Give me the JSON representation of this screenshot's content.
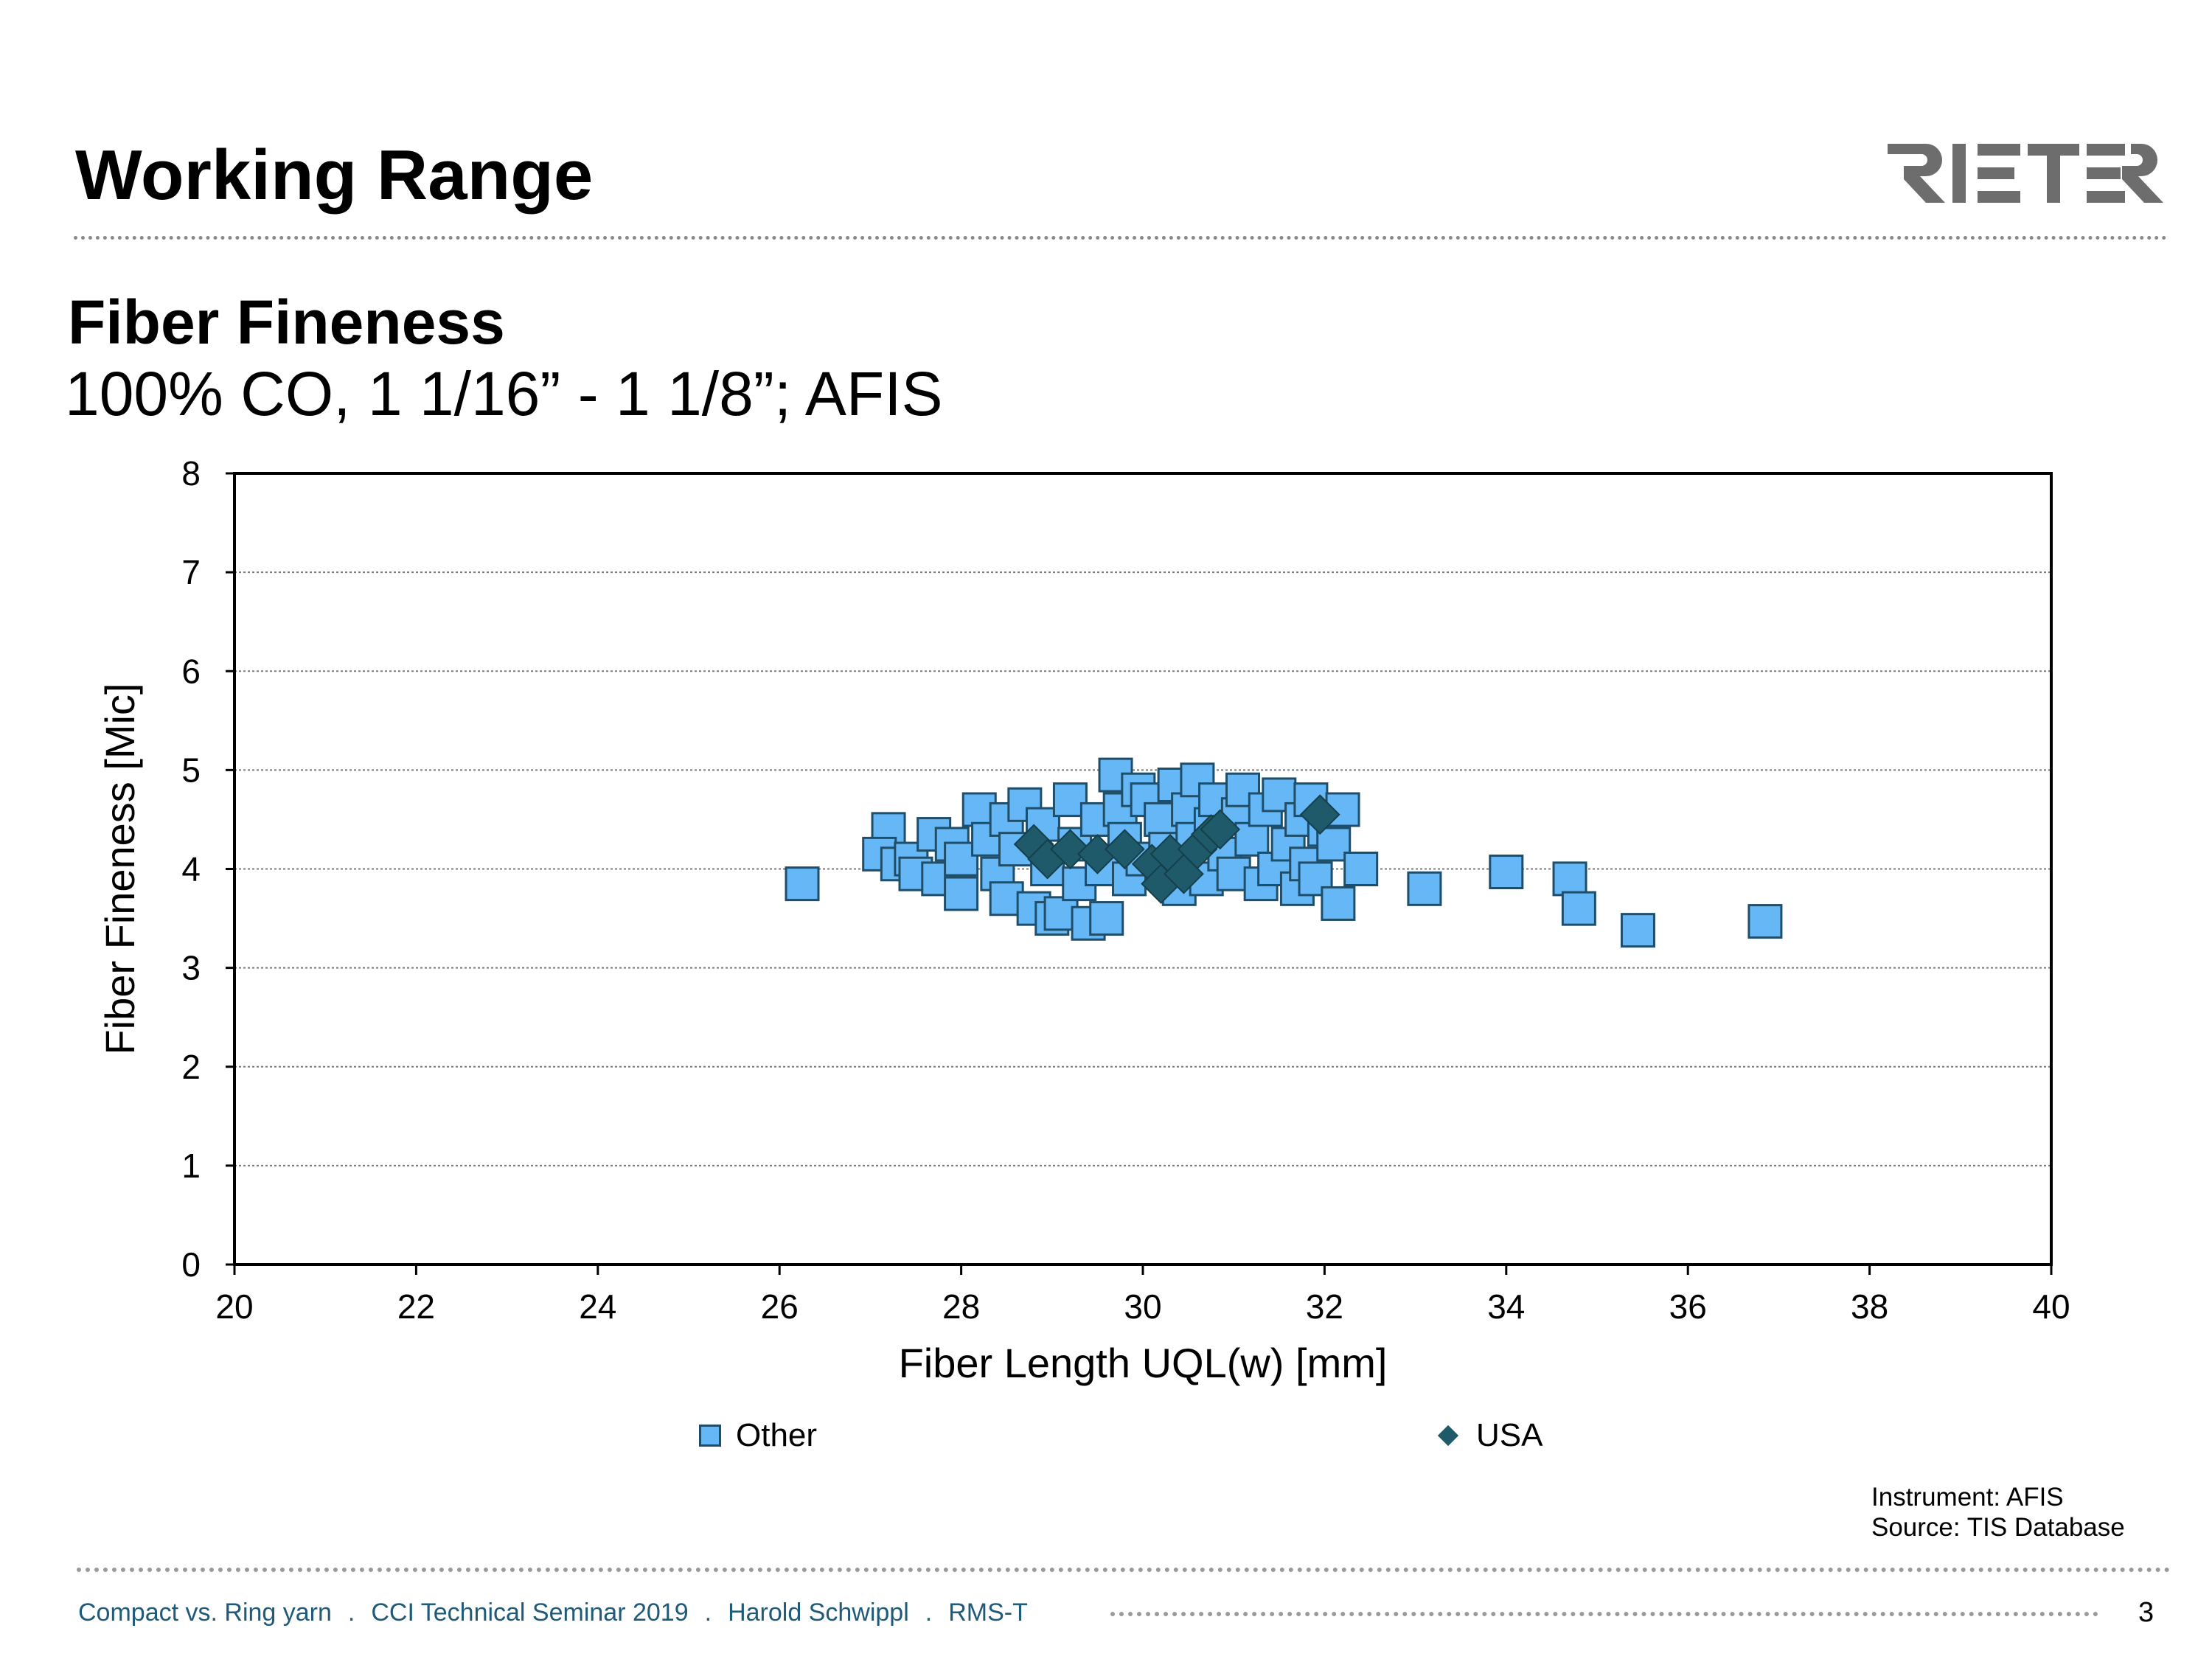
{
  "slide": {
    "title": "Working Range",
    "heading": "Fiber Fineness",
    "subheading": "100% CO, 1 1/16” - 1 1/8”; AFIS",
    "logo_text": "RIETER",
    "source_line1": "Instrument: AFIS",
    "source_line2": "Source: TIS Database",
    "footer": {
      "part1": "Compact vs. Ring yarn",
      "part2": "CCI Technical Seminar 2019",
      "part3": "Harold Schwippl",
      "part4": "RMS-T",
      "separator": ".",
      "page_number": "3"
    }
  },
  "chart_data": {
    "type": "scatter",
    "title": "",
    "xlabel": "Fiber Length UQL(w) [mm]",
    "ylabel": "Fiber Fineness [Mic]",
    "xlim": [
      20,
      40
    ],
    "ylim": [
      0,
      8
    ],
    "x_ticks": [
      20,
      22,
      24,
      26,
      28,
      30,
      32,
      34,
      36,
      38,
      40
    ],
    "y_ticks": [
      0,
      1,
      2,
      3,
      4,
      5,
      6,
      7,
      8
    ],
    "grid": "horizontal dotted",
    "legend_position": "bottom",
    "colors": {
      "Other": "#66b7f5",
      "Other_border": "#1f4e6b",
      "USA": "#1f5a6b"
    },
    "series": [
      {
        "name": "Other",
        "marker": "square",
        "points": [
          [
            26.25,
            3.85
          ],
          [
            27.2,
            4.4
          ],
          [
            27.1,
            4.15
          ],
          [
            27.3,
            4.05
          ],
          [
            27.45,
            4.1
          ],
          [
            27.5,
            3.95
          ],
          [
            27.7,
            4.35
          ],
          [
            27.75,
            3.9
          ],
          [
            27.9,
            4.25
          ],
          [
            28.0,
            4.1
          ],
          [
            28.0,
            3.75
          ],
          [
            28.2,
            4.6
          ],
          [
            28.3,
            4.3
          ],
          [
            28.4,
            3.95
          ],
          [
            28.5,
            4.5
          ],
          [
            28.5,
            3.7
          ],
          [
            28.6,
            4.2
          ],
          [
            28.7,
            4.65
          ],
          [
            28.8,
            3.6
          ],
          [
            28.9,
            4.45
          ],
          [
            28.95,
            4.0
          ],
          [
            29.0,
            3.5
          ],
          [
            29.1,
            3.55
          ],
          [
            29.2,
            4.7
          ],
          [
            29.25,
            4.25
          ],
          [
            29.3,
            3.85
          ],
          [
            29.4,
            3.45
          ],
          [
            29.5,
            4.5
          ],
          [
            29.55,
            4.0
          ],
          [
            29.6,
            3.5
          ],
          [
            29.7,
            4.95
          ],
          [
            29.75,
            4.6
          ],
          [
            29.8,
            4.3
          ],
          [
            29.85,
            3.9
          ],
          [
            29.95,
            4.8
          ],
          [
            30.0,
            4.1
          ],
          [
            30.05,
            4.7
          ],
          [
            30.2,
            4.5
          ],
          [
            30.25,
            4.2
          ],
          [
            30.3,
            3.95
          ],
          [
            30.35,
            4.85
          ],
          [
            30.4,
            3.8
          ],
          [
            30.5,
            4.6
          ],
          [
            30.55,
            4.3
          ],
          [
            30.6,
            4.9
          ],
          [
            30.7,
            3.9
          ],
          [
            30.75,
            4.45
          ],
          [
            30.8,
            4.7
          ],
          [
            30.9,
            4.15
          ],
          [
            31.0,
            3.95
          ],
          [
            31.05,
            4.55
          ],
          [
            31.1,
            4.8
          ],
          [
            31.2,
            4.3
          ],
          [
            31.3,
            3.85
          ],
          [
            31.35,
            4.6
          ],
          [
            31.45,
            4.0
          ],
          [
            31.5,
            4.75
          ],
          [
            31.6,
            4.25
          ],
          [
            31.7,
            3.8
          ],
          [
            31.75,
            4.5
          ],
          [
            31.8,
            4.05
          ],
          [
            31.85,
            4.7
          ],
          [
            31.9,
            3.9
          ],
          [
            32.0,
            4.4
          ],
          [
            32.1,
            4.25
          ],
          [
            32.2,
            4.6
          ],
          [
            32.15,
            3.65
          ],
          [
            32.4,
            4.0
          ],
          [
            33.1,
            3.8
          ],
          [
            34.0,
            3.97
          ],
          [
            34.7,
            3.9
          ],
          [
            34.8,
            3.6
          ],
          [
            35.45,
            3.38
          ],
          [
            36.85,
            3.47
          ]
        ]
      },
      {
        "name": "USA",
        "marker": "diamond",
        "points": [
          [
            28.8,
            4.25
          ],
          [
            28.95,
            4.1
          ],
          [
            29.2,
            4.2
          ],
          [
            29.5,
            4.15
          ],
          [
            29.8,
            4.2
          ],
          [
            30.1,
            4.05
          ],
          [
            30.2,
            3.85
          ],
          [
            30.3,
            4.15
          ],
          [
            30.45,
            3.95
          ],
          [
            30.6,
            4.2
          ],
          [
            30.75,
            4.35
          ],
          [
            30.85,
            4.4
          ],
          [
            31.95,
            4.55
          ]
        ]
      }
    ]
  }
}
